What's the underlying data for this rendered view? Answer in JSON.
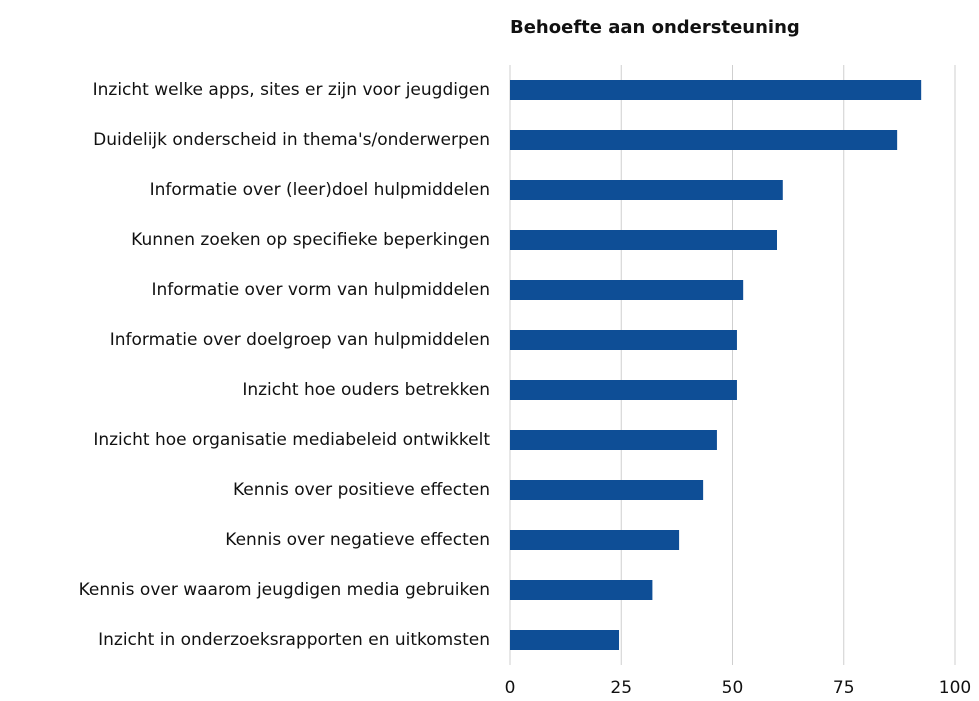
{
  "chart_data": {
    "type": "bar",
    "orientation": "horizontal",
    "title": "Behoefte aan ondersteuning",
    "categories": [
      "Inzicht welke apps, sites er zijn voor jeugdigen",
      "Duidelijk onderscheid in thema's/onderwerpen",
      "Informatie over (leer)doel hulpmiddelen",
      "Kunnen zoeken op specifieke beperkingen",
      "Informatie over vorm van hulpmiddelen",
      "Informatie over doelgroep van hulpmiddelen",
      "Inzicht hoe ouders betrekken",
      "Inzicht hoe organisatie mediabeleid ontwikkelt",
      "Kennis over positieve effecten",
      "Kennis over negatieve effecten",
      "Kennis over waarom jeugdigen media gebruiken",
      "Inzicht in onderzoeksrapporten en uitkomsten"
    ],
    "values": [
      92.4,
      87,
      61.3,
      60,
      52.4,
      51,
      51,
      46.5,
      43.4,
      38,
      32,
      24.5
    ],
    "color": "#0e4e96",
    "xlim": [
      0,
      100
    ],
    "xticks": [
      0,
      25,
      50,
      75,
      100
    ],
    "grid": true
  }
}
